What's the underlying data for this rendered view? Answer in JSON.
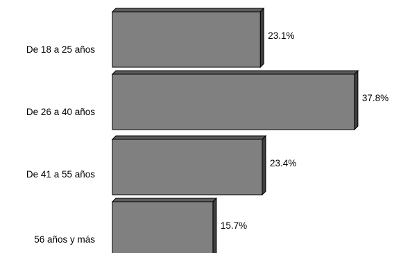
{
  "chart_data": {
    "type": "bar",
    "orientation": "horizontal",
    "style": "3d",
    "categories": [
      "De 18 a 25 años",
      "De 26 a 40 años",
      "De 41 a 55 años",
      "56 años y más"
    ],
    "values": [
      23.1,
      37.8,
      23.4,
      15.7
    ],
    "value_labels": [
      "23.1%",
      "37.8%",
      "23.4%",
      "15.7%"
    ],
    "value_unit": "%",
    "title": "",
    "xlabel": "",
    "ylabel": "",
    "xlim": [
      0,
      40
    ],
    "grid": false,
    "legend": "none",
    "colors": {
      "bar_front": "#808080",
      "bar_top": "#5c5c5c",
      "bar_side": "#3f3f3f",
      "bar_edge": "#000000",
      "text": "#000000",
      "background": "#ffffff"
    }
  }
}
